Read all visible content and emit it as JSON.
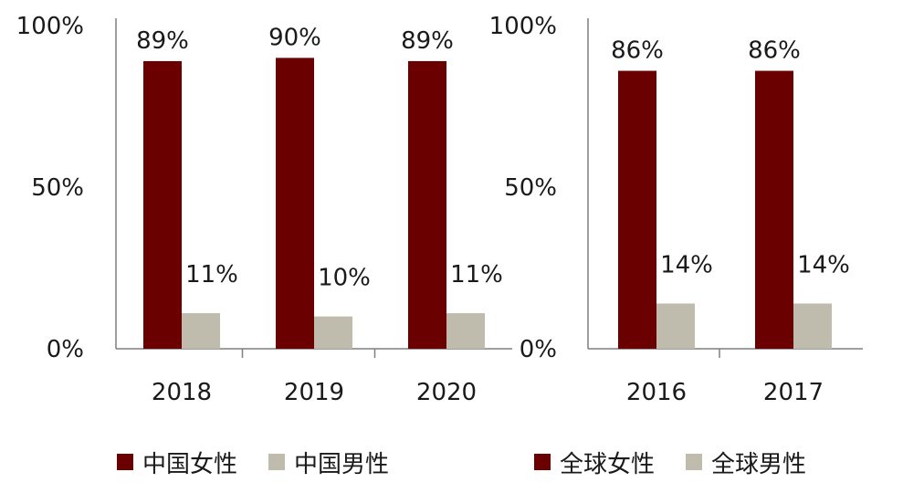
{
  "colors": {
    "female": "#6b0000",
    "male": "#bfbcae",
    "axis": "#7f7f7f"
  },
  "chart_data": [
    {
      "type": "bar",
      "categories": [
        "2018",
        "2019",
        "2020"
      ],
      "series": [
        {
          "name": "中国女性",
          "values": [
            89,
            90,
            89
          ],
          "labels": [
            "89%",
            "90%",
            "89%"
          ]
        },
        {
          "name": "中国男性",
          "values": [
            11,
            10,
            11
          ],
          "labels": [
            "11%",
            "10%",
            "11%"
          ]
        }
      ],
      "yticks": [
        "0%",
        "50%",
        "100%"
      ],
      "ylim": [
        0,
        100
      ],
      "legend_position": "bottom"
    },
    {
      "type": "bar",
      "categories": [
        "2016",
        "2017"
      ],
      "series": [
        {
          "name": "全球女性",
          "values": [
            86,
            86
          ],
          "labels": [
            "86%",
            "86%"
          ]
        },
        {
          "name": "全球男性",
          "values": [
            14,
            14
          ],
          "labels": [
            "14%",
            "14%"
          ]
        }
      ],
      "yticks": [
        "0%",
        "50%",
        "100%"
      ],
      "ylim": [
        0,
        100
      ],
      "legend_position": "bottom"
    }
  ]
}
